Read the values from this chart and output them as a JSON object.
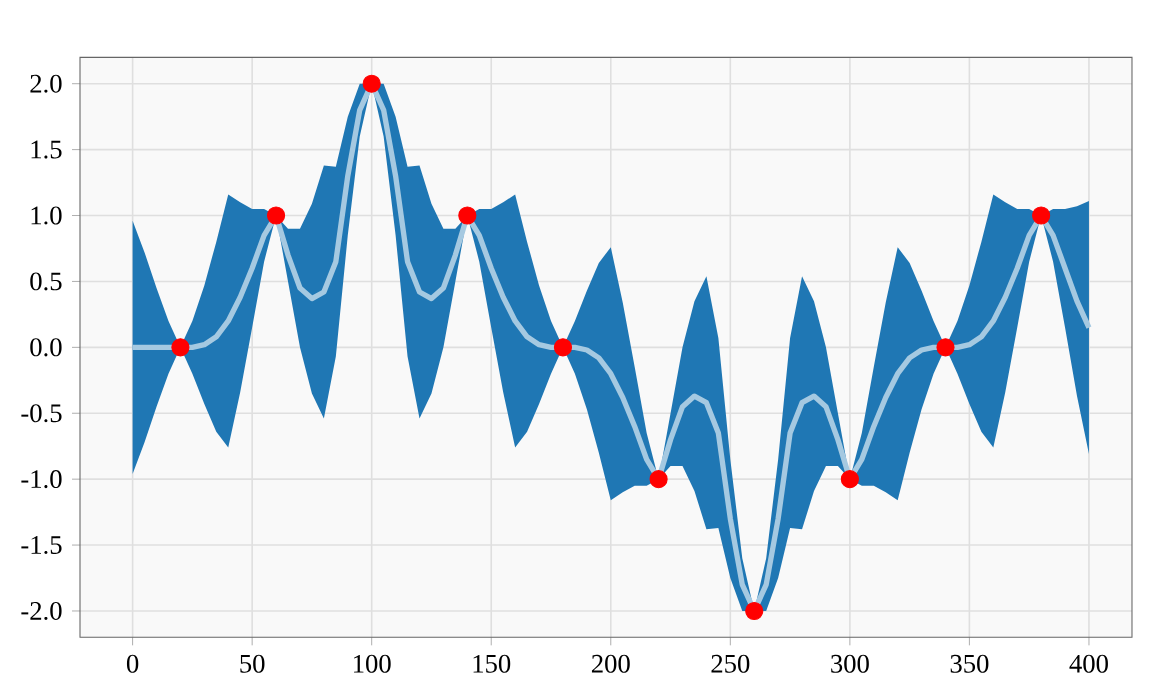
{
  "chart_data": {
    "type": "line",
    "xlim": [
      -22,
      418
    ],
    "ylim": [
      -2.2,
      2.2
    ],
    "xticks": [
      0,
      50,
      100,
      150,
      200,
      250,
      300,
      350,
      400
    ],
    "yticks": [
      {
        "value": -2,
        "label": "-2.0"
      },
      -1.5,
      {
        "value": -1,
        "label": "-1.0"
      },
      -0.5,
      {
        "value": 0,
        "label": "0.0"
      },
      0.5,
      {
        "value": 1,
        "label": "1.0"
      },
      1.5,
      {
        "value": 2,
        "label": "2.0"
      }
    ],
    "grid": true,
    "series": [
      {
        "color": "#a5c9e1",
        "marker": "none",
        "line_style": "solid",
        "x": [
          0,
          5,
          10,
          15,
          20,
          25,
          30,
          35,
          40,
          45,
          50,
          55,
          60,
          65,
          70,
          75,
          80,
          85,
          90,
          95,
          100,
          105,
          110,
          115,
          120,
          125,
          130,
          135,
          140,
          145,
          150,
          155,
          160,
          165,
          170,
          175,
          180,
          185,
          190,
          195,
          200,
          205,
          210,
          215,
          220,
          225,
          230,
          235,
          240,
          245,
          250,
          255,
          260,
          265,
          270,
          275,
          280,
          285,
          290,
          295,
          300,
          305,
          310,
          315,
          320,
          325,
          330,
          335,
          340,
          345,
          350,
          355,
          360,
          365,
          370,
          375,
          380,
          385,
          390,
          395,
          400
        ],
        "values": [
          0,
          0,
          0,
          0,
          0,
          0,
          0.02,
          0.08,
          0.2,
          0.38,
          0.6,
          0.85,
          1,
          0.7,
          0.45,
          0.37,
          0.42,
          0.65,
          1.3,
          1.8,
          2,
          1.8,
          1.3,
          0.65,
          0.42,
          0.37,
          0.45,
          0.7,
          1,
          0.85,
          0.6,
          0.38,
          0.2,
          0.08,
          0.02,
          0,
          0,
          0,
          -0.02,
          -0.08,
          -0.2,
          -0.38,
          -0.6,
          -0.85,
          -1,
          -0.7,
          -0.45,
          -0.37,
          -0.42,
          -0.65,
          -1.3,
          -1.8,
          -2,
          -1.8,
          -1.3,
          -0.65,
          -0.42,
          -0.37,
          -0.45,
          -0.7,
          -1,
          -0.85,
          -0.6,
          -0.38,
          -0.2,
          -0.08,
          -0.02,
          0,
          0,
          0,
          0.02,
          0.08,
          0.2,
          0.38,
          0.6,
          0.85,
          1,
          0.85,
          0.6,
          0.35,
          0.15
        ],
        "lower": [
          -0.96,
          -0.72,
          -0.45,
          -0.2,
          0,
          -0.2,
          -0.43,
          -0.64,
          -0.76,
          -0.34,
          0.15,
          0.65,
          1,
          0.5,
          0,
          -0.35,
          -0.54,
          -0.07,
          0.85,
          1.6,
          2,
          1.6,
          0.85,
          -0.07,
          -0.54,
          -0.35,
          0,
          0.5,
          1,
          0.65,
          0.15,
          -0.34,
          -0.76,
          -0.64,
          -0.43,
          -0.2,
          0,
          -0.2,
          -0.47,
          -0.8,
          -1.16,
          -1.1,
          -1.05,
          -1.05,
          -1,
          -0.9,
          -0.9,
          -1.09,
          -1.38,
          -1.37,
          -1.75,
          -2.0,
          -2,
          -2.0,
          -1.75,
          -1.37,
          -1.38,
          -1.09,
          -0.9,
          -0.9,
          -1,
          -1.05,
          -1.05,
          -1.1,
          -1.16,
          -0.8,
          -0.47,
          -0.2,
          0,
          -0.2,
          -0.43,
          -0.64,
          -0.76,
          -0.34,
          0.15,
          0.65,
          1,
          0.65,
          0.15,
          -0.37,
          -0.81
        ],
        "upper": [
          0.96,
          0.72,
          0.45,
          0.2,
          0,
          0.2,
          0.47,
          0.8,
          1.16,
          1.1,
          1.05,
          1.05,
          1,
          0.9,
          0.9,
          1.09,
          1.38,
          1.37,
          1.75,
          2.0,
          2,
          2.0,
          1.75,
          1.37,
          1.38,
          1.09,
          0.9,
          0.9,
          1,
          1.05,
          1.05,
          1.1,
          1.16,
          0.8,
          0.47,
          0.2,
          0,
          0.2,
          0.43,
          0.64,
          0.76,
          0.34,
          -0.15,
          -0.65,
          -1,
          -0.5,
          0,
          0.35,
          0.54,
          0.07,
          -0.85,
          -1.6,
          -2,
          -1.6,
          -0.85,
          0.07,
          0.54,
          0.35,
          0,
          -0.5,
          -1,
          -0.65,
          -0.15,
          0.34,
          0.76,
          0.64,
          0.43,
          0.2,
          0,
          0.2,
          0.47,
          0.8,
          1.16,
          1.1,
          1.05,
          1.05,
          1,
          1.05,
          1.05,
          1.07,
          1.11
        ]
      },
      {
        "type": "scatter",
        "color": "#ff0000",
        "marker": "circle",
        "x": [
          20,
          60,
          100,
          140,
          180,
          220,
          260,
          300,
          340,
          380
        ],
        "values": [
          0,
          1,
          2,
          1,
          0,
          -1,
          -2,
          -1,
          0,
          1
        ]
      }
    ]
  }
}
